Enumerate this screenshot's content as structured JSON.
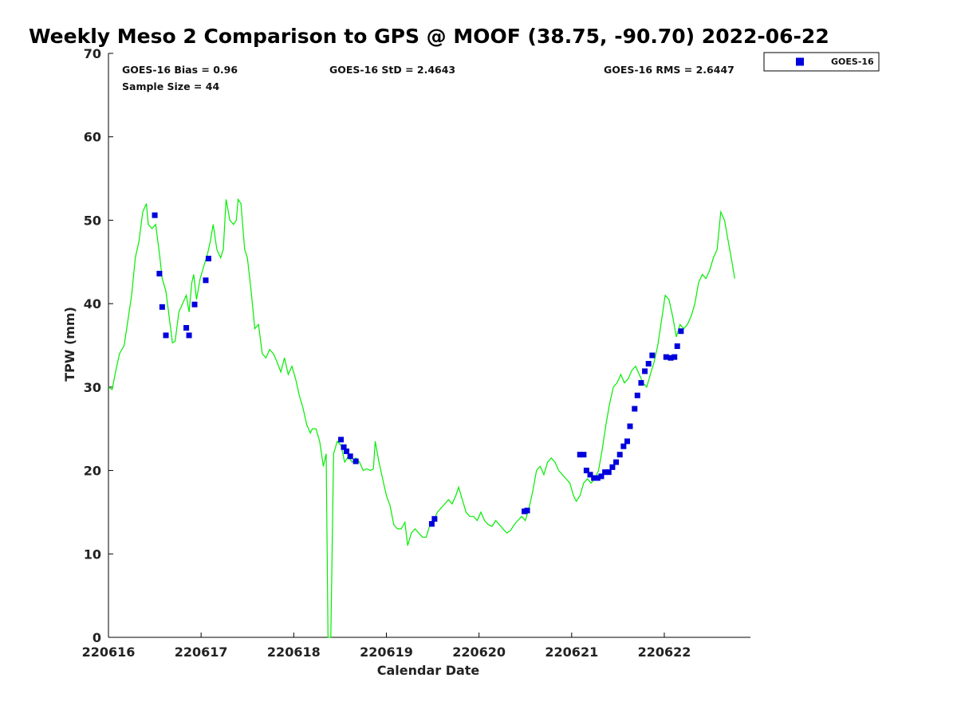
{
  "chart_data": {
    "type": "scatter",
    "title": "Weekly Meso 2 Comparison to GPS @ MOOF (38.75, -90.70) 2022-06-22",
    "xlabel": "Calendar Date",
    "ylabel": "TPW (mm)",
    "xlim": [
      0,
      6.93
    ],
    "ylim": [
      0,
      70
    ],
    "x_ticks": [
      {
        "value": 0,
        "label": "220616"
      },
      {
        "value": 1,
        "label": "220617"
      },
      {
        "value": 2,
        "label": "220618"
      },
      {
        "value": 3,
        "label": "220619"
      },
      {
        "value": 4,
        "label": "220620"
      },
      {
        "value": 5,
        "label": "220621"
      },
      {
        "value": 6,
        "label": "220622"
      }
    ],
    "y_ticks": [
      0,
      10,
      20,
      30,
      40,
      50,
      60,
      70
    ],
    "grid": false,
    "legend_position": "top-right",
    "stats": {
      "bias": "GOES-16 Bias = 0.96",
      "sample": "Sample Size = 44",
      "std": "GOES-16 StD = 2.4643",
      "rms": "GOES-16 RMS = 2.6447"
    },
    "colors": {
      "gps_line": "#00ee00",
      "goes_marker": "#0000dd"
    },
    "series": [
      {
        "type": "line",
        "color": "#00ee00",
        "points": [
          [
            0.0,
            30.0
          ],
          [
            0.04,
            29.7
          ],
          [
            0.08,
            32.0
          ],
          [
            0.12,
            34.0
          ],
          [
            0.17,
            35.0
          ],
          [
            0.21,
            38.0
          ],
          [
            0.25,
            41.0
          ],
          [
            0.29,
            45.5
          ],
          [
            0.33,
            47.5
          ],
          [
            0.37,
            51.0
          ],
          [
            0.41,
            52.0
          ],
          [
            0.43,
            49.5
          ],
          [
            0.47,
            49.0
          ],
          [
            0.51,
            49.5
          ],
          [
            0.55,
            46.0
          ],
          [
            0.58,
            43.0
          ],
          [
            0.62,
            41.5
          ],
          [
            0.66,
            38.0
          ],
          [
            0.69,
            35.3
          ],
          [
            0.72,
            35.5
          ],
          [
            0.76,
            39.0
          ],
          [
            0.8,
            40.0
          ],
          [
            0.84,
            41.0
          ],
          [
            0.87,
            39.0
          ],
          [
            0.9,
            42.5
          ],
          [
            0.92,
            43.5
          ],
          [
            0.95,
            40.5
          ],
          [
            0.99,
            43.0
          ],
          [
            1.03,
            44.5
          ],
          [
            1.07,
            46.0
          ],
          [
            1.1,
            47.5
          ],
          [
            1.13,
            49.5
          ],
          [
            1.17,
            46.5
          ],
          [
            1.21,
            45.5
          ],
          [
            1.24,
            46.5
          ],
          [
            1.27,
            52.5
          ],
          [
            1.31,
            50.0
          ],
          [
            1.35,
            49.5
          ],
          [
            1.38,
            50.0
          ],
          [
            1.4,
            52.5
          ],
          [
            1.43,
            52.0
          ],
          [
            1.47,
            46.5
          ],
          [
            1.5,
            45.5
          ],
          [
            1.54,
            41.5
          ],
          [
            1.58,
            37.0
          ],
          [
            1.62,
            37.5
          ],
          [
            1.66,
            34.0
          ],
          [
            1.7,
            33.5
          ],
          [
            1.74,
            34.5
          ],
          [
            1.78,
            34.0
          ],
          [
            1.82,
            33.0
          ],
          [
            1.86,
            31.8
          ],
          [
            1.9,
            33.5
          ],
          [
            1.94,
            31.5
          ],
          [
            1.98,
            32.5
          ],
          [
            2.02,
            31.0
          ],
          [
            2.06,
            29.0
          ],
          [
            2.1,
            27.5
          ],
          [
            2.14,
            25.5
          ],
          [
            2.18,
            24.5
          ],
          [
            2.2,
            25.0
          ],
          [
            2.24,
            25.0
          ],
          [
            2.28,
            23.5
          ],
          [
            2.32,
            20.5
          ],
          [
            2.35,
            22.0
          ],
          [
            2.37,
            0.0
          ],
          [
            2.4,
            0.0
          ],
          [
            2.43,
            22.0
          ],
          [
            2.47,
            23.5
          ],
          [
            2.51,
            23.0
          ],
          [
            2.55,
            21.0
          ],
          [
            2.59,
            21.7
          ],
          [
            2.63,
            21.0
          ],
          [
            2.67,
            21.5
          ],
          [
            2.71,
            21.0
          ],
          [
            2.75,
            20.0
          ],
          [
            2.79,
            20.2
          ],
          [
            2.83,
            20.0
          ],
          [
            2.86,
            20.2
          ],
          [
            2.88,
            23.5
          ],
          [
            2.92,
            21.0
          ],
          [
            2.96,
            19.0
          ],
          [
            3.0,
            17.0
          ],
          [
            3.04,
            15.8
          ],
          [
            3.08,
            13.5
          ],
          [
            3.12,
            13.0
          ],
          [
            3.16,
            13.0
          ],
          [
            3.2,
            13.8
          ],
          [
            3.23,
            11.0
          ],
          [
            3.27,
            12.5
          ],
          [
            3.31,
            13.0
          ],
          [
            3.35,
            12.5
          ],
          [
            3.39,
            12.0
          ],
          [
            3.43,
            12.0
          ],
          [
            3.47,
            13.5
          ],
          [
            3.51,
            14.0
          ],
          [
            3.55,
            15.0
          ],
          [
            3.59,
            15.5
          ],
          [
            3.63,
            16.0
          ],
          [
            3.67,
            16.5
          ],
          [
            3.71,
            16.0
          ],
          [
            3.75,
            17.0
          ],
          [
            3.78,
            18.0
          ],
          [
            3.82,
            16.5
          ],
          [
            3.86,
            15.0
          ],
          [
            3.9,
            14.5
          ],
          [
            3.94,
            14.5
          ],
          [
            3.98,
            14.0
          ],
          [
            4.02,
            15.0
          ],
          [
            4.06,
            14.0
          ],
          [
            4.1,
            13.5
          ],
          [
            4.14,
            13.3
          ],
          [
            4.18,
            14.0
          ],
          [
            4.22,
            13.5
          ],
          [
            4.26,
            13.0
          ],
          [
            4.3,
            12.5
          ],
          [
            4.34,
            12.8
          ],
          [
            4.38,
            13.5
          ],
          [
            4.42,
            14.0
          ],
          [
            4.46,
            14.5
          ],
          [
            4.5,
            14.0
          ],
          [
            4.54,
            15.5
          ],
          [
            4.58,
            17.5
          ],
          [
            4.62,
            20.0
          ],
          [
            4.66,
            20.5
          ],
          [
            4.7,
            19.5
          ],
          [
            4.74,
            21.0
          ],
          [
            4.78,
            21.5
          ],
          [
            4.82,
            21.0
          ],
          [
            4.86,
            20.0
          ],
          [
            4.9,
            19.5
          ],
          [
            4.94,
            19.0
          ],
          [
            4.98,
            18.5
          ],
          [
            5.02,
            17.0
          ],
          [
            5.05,
            16.3
          ],
          [
            5.09,
            17.0
          ],
          [
            5.13,
            18.5
          ],
          [
            5.17,
            19.0
          ],
          [
            5.21,
            18.5
          ],
          [
            5.25,
            19.0
          ],
          [
            5.29,
            20.0
          ],
          [
            5.33,
            22.5
          ],
          [
            5.37,
            25.5
          ],
          [
            5.41,
            28.0
          ],
          [
            5.45,
            30.0
          ],
          [
            5.49,
            30.5
          ],
          [
            5.53,
            31.5
          ],
          [
            5.57,
            30.5
          ],
          [
            5.61,
            31.0
          ],
          [
            5.65,
            32.0
          ],
          [
            5.69,
            32.5
          ],
          [
            5.73,
            31.5
          ],
          [
            5.77,
            30.5
          ],
          [
            5.81,
            30.0
          ],
          [
            5.85,
            31.5
          ],
          [
            5.89,
            33.0
          ],
          [
            5.93,
            35.0
          ],
          [
            5.97,
            38.0
          ],
          [
            6.01,
            41.0
          ],
          [
            6.05,
            40.5
          ],
          [
            6.09,
            38.5
          ],
          [
            6.13,
            36.0
          ],
          [
            6.17,
            37.5
          ],
          [
            6.21,
            37.0
          ],
          [
            6.25,
            37.5
          ],
          [
            6.29,
            38.5
          ],
          [
            6.33,
            40.0
          ],
          [
            6.37,
            42.5
          ],
          [
            6.41,
            43.5
          ],
          [
            6.45,
            43.0
          ],
          [
            6.49,
            44.0
          ],
          [
            6.53,
            45.5
          ],
          [
            6.57,
            46.5
          ],
          [
            6.61,
            51.0
          ],
          [
            6.65,
            50.0
          ],
          [
            6.69,
            47.5
          ],
          [
            6.73,
            45.0
          ],
          [
            6.76,
            43.0
          ]
        ]
      },
      {
        "type": "scatter",
        "name": "GOES-16",
        "color": "#0000dd",
        "marker": "square",
        "points": [
          [
            0.5,
            50.6
          ],
          [
            0.55,
            43.6
          ],
          [
            0.58,
            39.6
          ],
          [
            0.62,
            36.2
          ],
          [
            0.84,
            37.1
          ],
          [
            0.87,
            36.2
          ],
          [
            0.93,
            39.9
          ],
          [
            1.05,
            42.8
          ],
          [
            1.08,
            45.4
          ],
          [
            2.51,
            23.7
          ],
          [
            2.54,
            22.8
          ],
          [
            2.57,
            22.3
          ],
          [
            2.61,
            21.7
          ],
          [
            2.67,
            21.1
          ],
          [
            3.49,
            13.6
          ],
          [
            3.52,
            14.2
          ],
          [
            4.49,
            15.1
          ],
          [
            4.52,
            15.2
          ],
          [
            5.09,
            21.9
          ],
          [
            5.13,
            21.9
          ],
          [
            5.16,
            20.0
          ],
          [
            5.2,
            19.5
          ],
          [
            5.24,
            19.1
          ],
          [
            5.28,
            19.1
          ],
          [
            5.32,
            19.3
          ],
          [
            5.36,
            19.8
          ],
          [
            5.4,
            19.8
          ],
          [
            5.44,
            20.4
          ],
          [
            5.48,
            21.0
          ],
          [
            5.52,
            21.9
          ],
          [
            5.56,
            22.9
          ],
          [
            5.6,
            23.5
          ],
          [
            5.63,
            25.3
          ],
          [
            5.68,
            27.4
          ],
          [
            5.71,
            29.0
          ],
          [
            5.75,
            30.5
          ],
          [
            5.79,
            31.9
          ],
          [
            5.83,
            32.8
          ],
          [
            5.87,
            33.8
          ],
          [
            6.02,
            33.6
          ],
          [
            6.07,
            33.5
          ],
          [
            6.11,
            33.6
          ],
          [
            6.14,
            34.9
          ],
          [
            6.18,
            36.7
          ]
        ]
      }
    ]
  }
}
